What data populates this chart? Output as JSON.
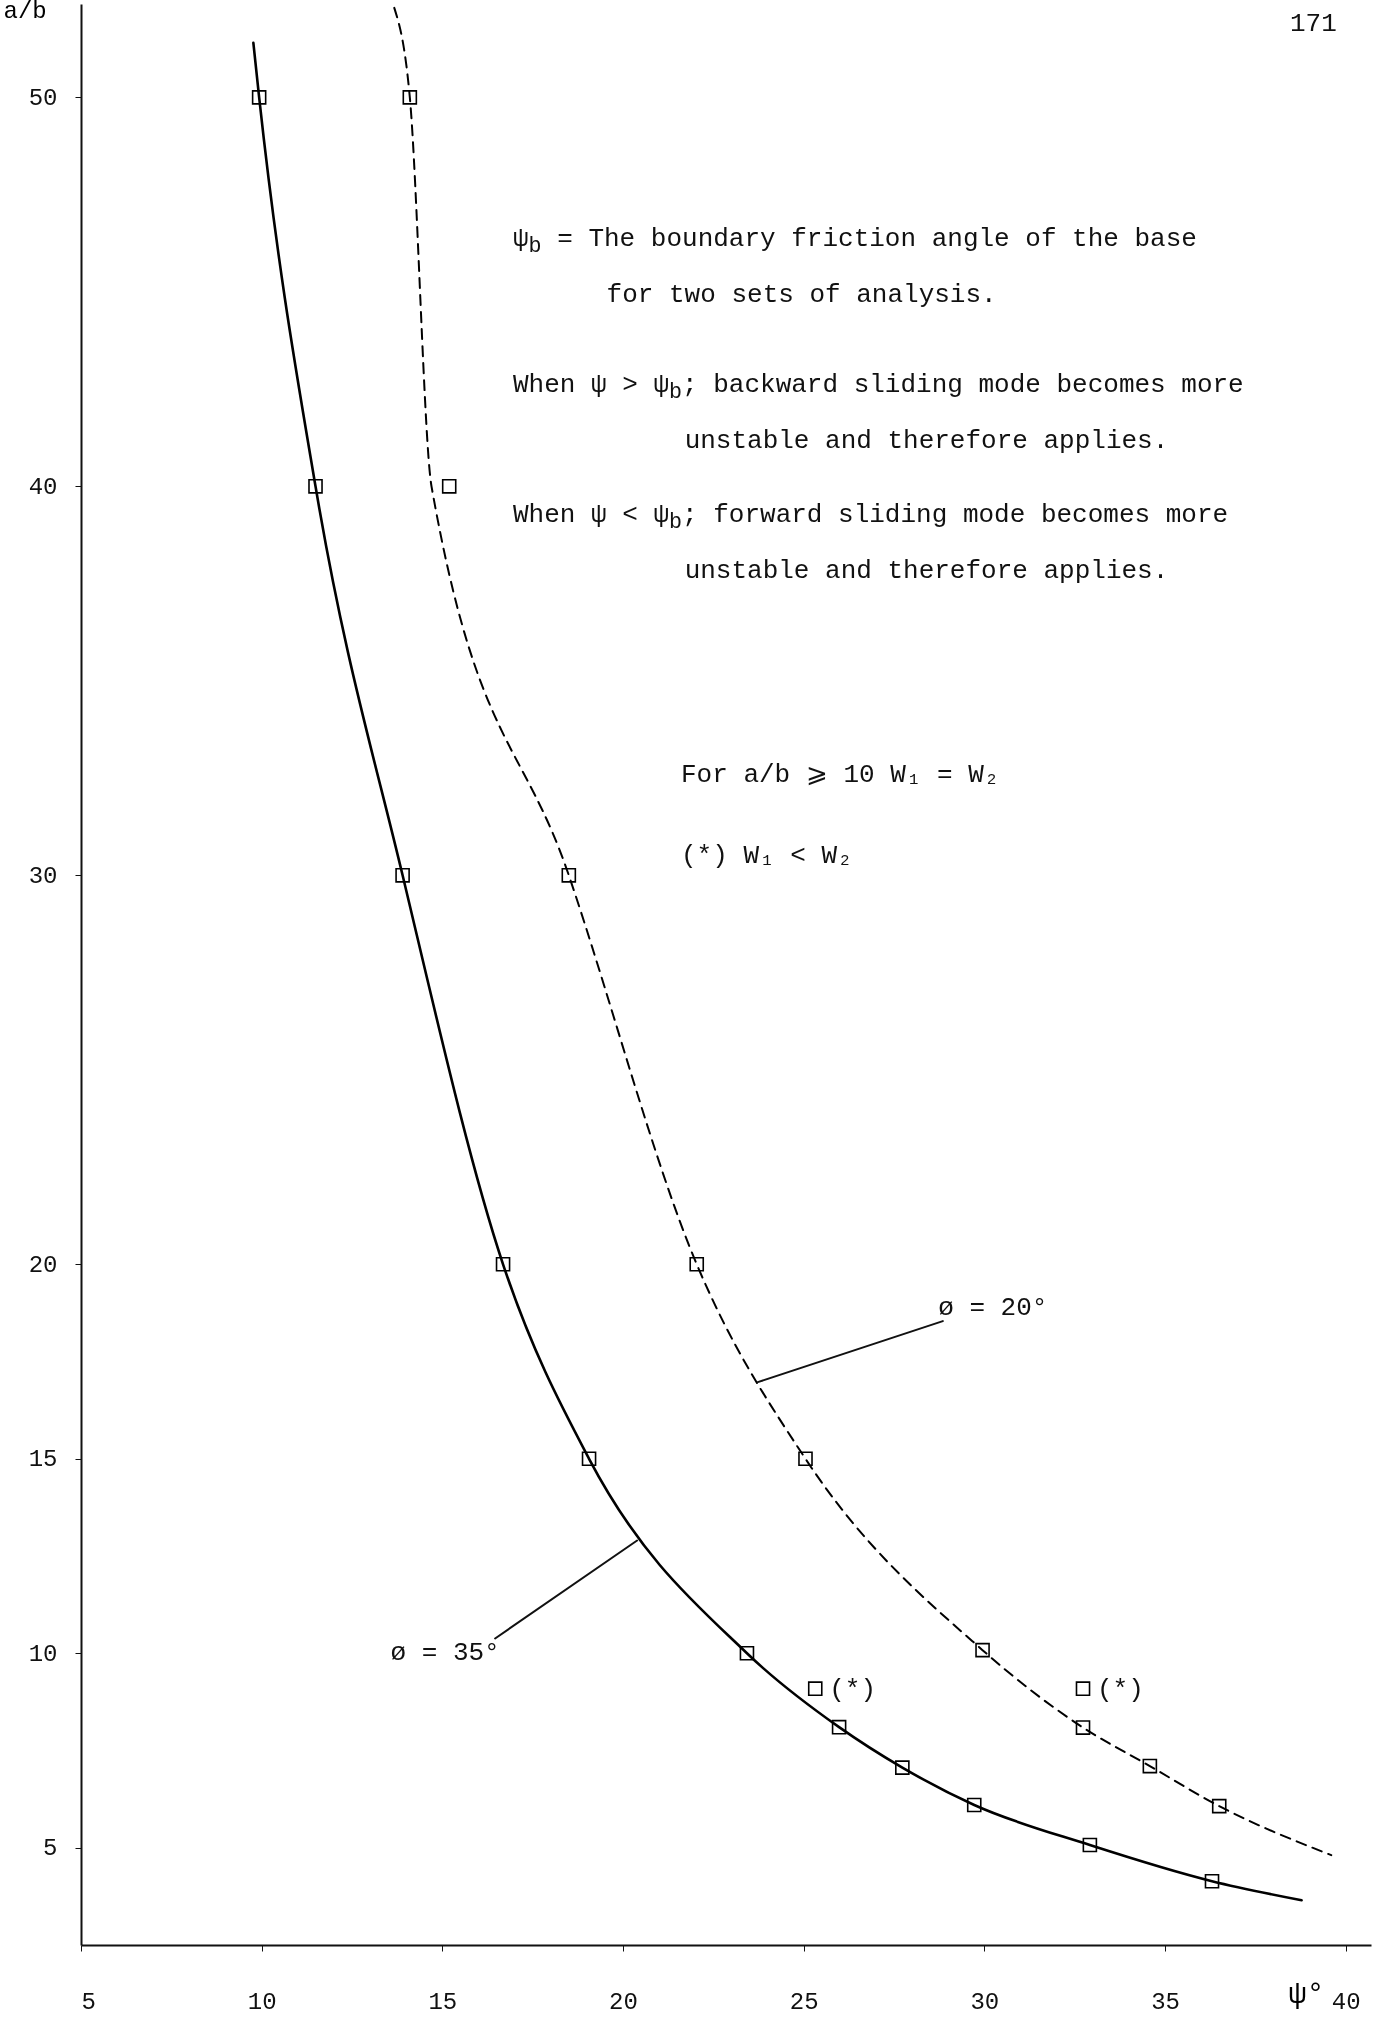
{
  "chart_data": {
    "type": "line",
    "xlabel": "ψ°",
    "ylabel": "a/b",
    "xlim": [
      5,
      40.7
    ],
    "xticks": [
      5,
      10,
      15,
      20,
      25,
      30,
      35,
      40
    ],
    "ylim": [
      2.5,
      52.4
    ],
    "yticks": [
      5,
      10,
      15,
      20,
      30,
      40,
      50
    ],
    "grid": false,
    "series": [
      {
        "type": "line",
        "line_style": "solid",
        "marker": "none",
        "color": "#000000",
        "x": [
          9.77,
          9.93,
          11.49,
          13.9,
          16.68,
          19.06,
          23.43,
          25.98,
          27.73,
          29.72,
          32.92,
          36.3,
          38.78
        ],
        "values": [
          51.4,
          50,
          40,
          30,
          20,
          15,
          10,
          8.1,
          7.06,
          6.1,
          5.07,
          4.14,
          3.65
        ]
      },
      {
        "type": "line",
        "line_style": "dashed",
        "marker": "none",
        "color": "#000000",
        "x": [
          13.67,
          14.1,
          14.7,
          18.5,
          22.04,
          25.05,
          29.95,
          32.73,
          34.58,
          36.5,
          39.6
        ],
        "values": [
          52.3,
          50,
          40,
          30,
          20,
          15,
          10.08,
          8.09,
          7.1,
          6.07,
          4.81
        ]
      },
      {
        "type": "scatter",
        "marker": "square",
        "color": "#000000",
        "x": [
          9.93,
          11.49,
          13.9,
          16.68,
          19.06,
          23.43,
          25.32,
          25.98,
          27.73,
          29.72,
          32.92,
          36.3
        ],
        "values": [
          50,
          40,
          30,
          20,
          15,
          10,
          9.09,
          8.1,
          7.06,
          6.1,
          5.07,
          4.14
        ]
      },
      {
        "type": "scatter",
        "marker": "square",
        "color": "#000000",
        "x": [
          14.1,
          15.19,
          18.5,
          22.04,
          25.05,
          29.95,
          32.73,
          32.73,
          34.58,
          36.5
        ],
        "values": [
          50,
          40,
          30,
          20,
          15,
          10.08,
          9.09,
          8.09,
          7.1,
          6.07
        ]
      }
    ],
    "annotations": [
      "ψ$_{b}$ = The boundary friction angle of the base for two sets of analysis.",
      "When ψ > ψ$_{b}$; backward sliding mode becomes more unstable and therefore applies.",
      "When ψ < ψ$_{b}$; forward sliding mode becomes more unstable and therefore applies.",
      "For a/b ⩾ 10  W₁ = W₂",
      "(*) W₁ < W₂",
      "171",
      {
        "text": "ø = 20°",
        "x": 23.73,
        "y": 16.97
      },
      {
        "text": "ø = 35°",
        "x": 20.39,
        "y": 12.9
      },
      {
        "text": "(*)",
        "x": 25.32,
        "y": 9.09
      },
      {
        "text": "(*)",
        "x": 32.73,
        "y": 9.09
      }
    ]
  }
}
